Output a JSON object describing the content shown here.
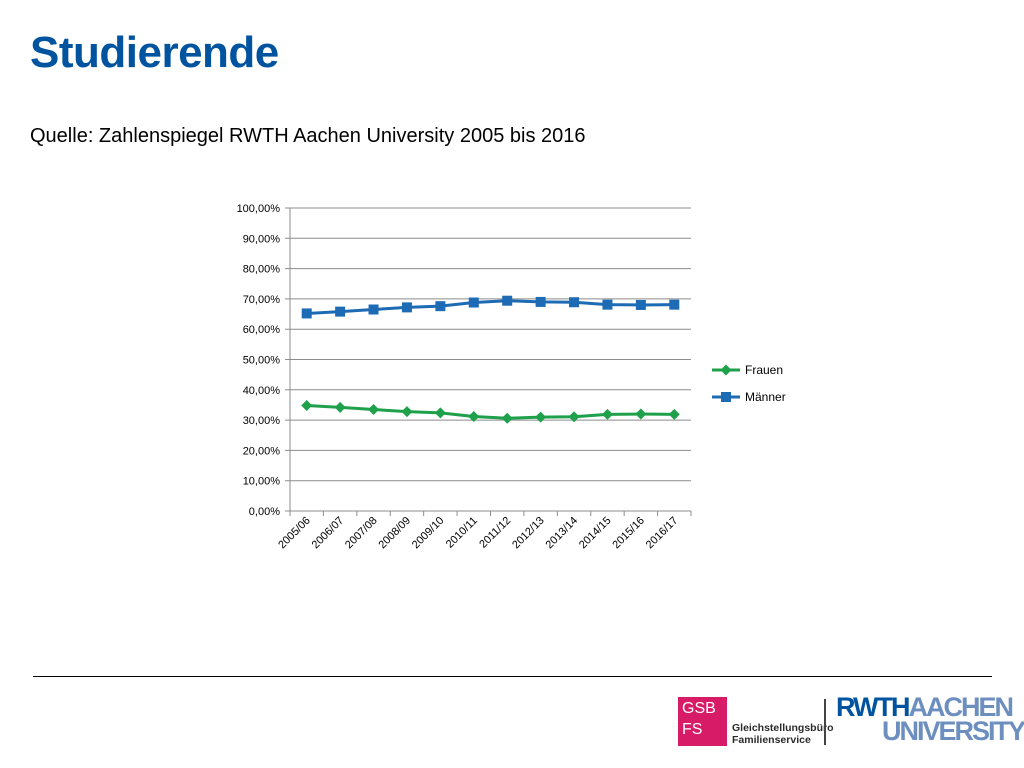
{
  "header": {
    "title": "Studierende",
    "subtitle": "Quelle: Zahlenspiegel RWTH Aachen University 2005 bis 2016"
  },
  "chart_data": {
    "type": "line",
    "categories": [
      "2005/06",
      "2006/07",
      "2007/08",
      "2008/09",
      "2009/10",
      "2010/11",
      "2011/12",
      "2012/13",
      "2013/14",
      "2014/15",
      "2015/16",
      "2016/17"
    ],
    "series": [
      {
        "name": "Frauen",
        "marker": "diamond",
        "color": "#1fa04a",
        "values": [
          34.8,
          34.2,
          33.5,
          32.8,
          32.4,
          31.2,
          30.6,
          31.0,
          31.1,
          31.9,
          32.0,
          31.9
        ]
      },
      {
        "name": "Männer",
        "marker": "square",
        "color": "#1e6bb5",
        "values": [
          65.2,
          65.8,
          66.5,
          67.2,
          67.6,
          68.8,
          69.4,
          69.0,
          68.9,
          68.1,
          68.0,
          68.1
        ]
      }
    ],
    "yticks": [
      "0,00%",
      "10,00%",
      "20,00%",
      "30,00%",
      "40,00%",
      "50,00%",
      "60,00%",
      "70,00%",
      "80,00%",
      "90,00%",
      "100,00%"
    ],
    "ylim": [
      0,
      100
    ],
    "grid": true,
    "legend_position": "right",
    "colors": {
      "axis": "#8c8c8c",
      "grid": "#8c8c8c"
    }
  },
  "footer": {
    "logo_gsb_line1": "GSB",
    "logo_gsb_line2": "FS",
    "logo_gsb_text_line1": "Gleichstellungsbüro",
    "logo_gsb_text_line2": "Familienservice",
    "logo_rwth_part1": "RWTH",
    "logo_rwth_part2": "AACHEN",
    "logo_rwth_line2": "UNIVERSITY"
  }
}
